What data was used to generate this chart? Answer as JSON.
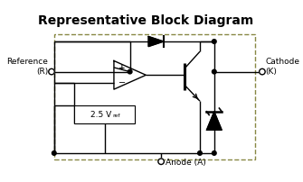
{
  "title": "Representative Block Diagram",
  "title_fontsize": 10,
  "title_bold": true,
  "bg_color": "#ffffff",
  "line_color": "#000000",
  "dashed_box_color": "#888844",
  "fig_width": 3.35,
  "fig_height": 2.02,
  "dpi": 100,
  "labels": {
    "reference": "Reference\n(R)",
    "cathode": "Cathode\n(K)",
    "anode": "Anode (A)",
    "vref_main": "2.5 V",
    "vref_sub": "ref"
  }
}
